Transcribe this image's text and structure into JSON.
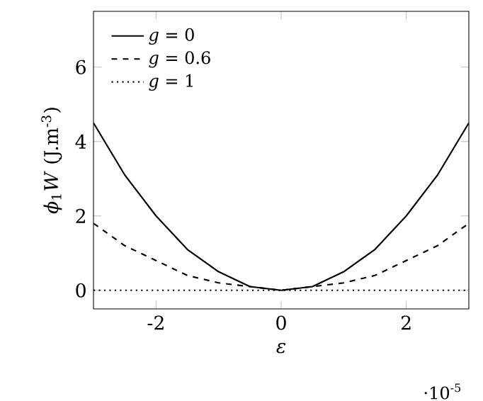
{
  "chart_data": {
    "type": "line",
    "xlabel": "*ε*",
    "ylabel": "*ϕ*$_{1}$*W* (J.m$^{-3}$)",
    "annotations": [
      "·10$^{-5}$"
    ],
    "x": [
      -3,
      -2.5,
      -2,
      -1.5,
      -1,
      -0.5,
      0,
      0.5,
      1,
      1.5,
      2,
      2.5,
      3
    ],
    "series": [
      {
        "name": "*g* = 0",
        "color": "#000000",
        "line_style": "solid",
        "values": [
          4.5,
          3.1,
          2,
          1.1,
          0.5,
          0.1,
          0,
          0.1,
          0.5,
          1.1,
          2,
          3.1,
          4.5
        ]
      },
      {
        "name": "*g* = 0.6",
        "color": "#000000",
        "line_style": "dashed",
        "values": [
          1.8,
          1.2,
          0.8,
          0.4,
          0.2,
          0.1,
          0,
          0.1,
          0.2,
          0.4,
          0.8,
          1.2,
          1.8
        ]
      },
      {
        "name": "*g* = 1",
        "color": "#000000",
        "line_style": "dotted",
        "values": [
          0,
          0,
          0,
          0,
          0,
          0,
          0,
          0,
          0,
          0,
          0,
          0,
          0
        ]
      }
    ],
    "xlim": [
      -3,
      3
    ],
    "ylim": [
      -0.5,
      7.5
    ],
    "xticks": [
      -2,
      0,
      2
    ],
    "yticks": [
      0,
      2,
      4,
      6
    ],
    "legend": "top left",
    "marker": "none",
    "grid": false
  }
}
